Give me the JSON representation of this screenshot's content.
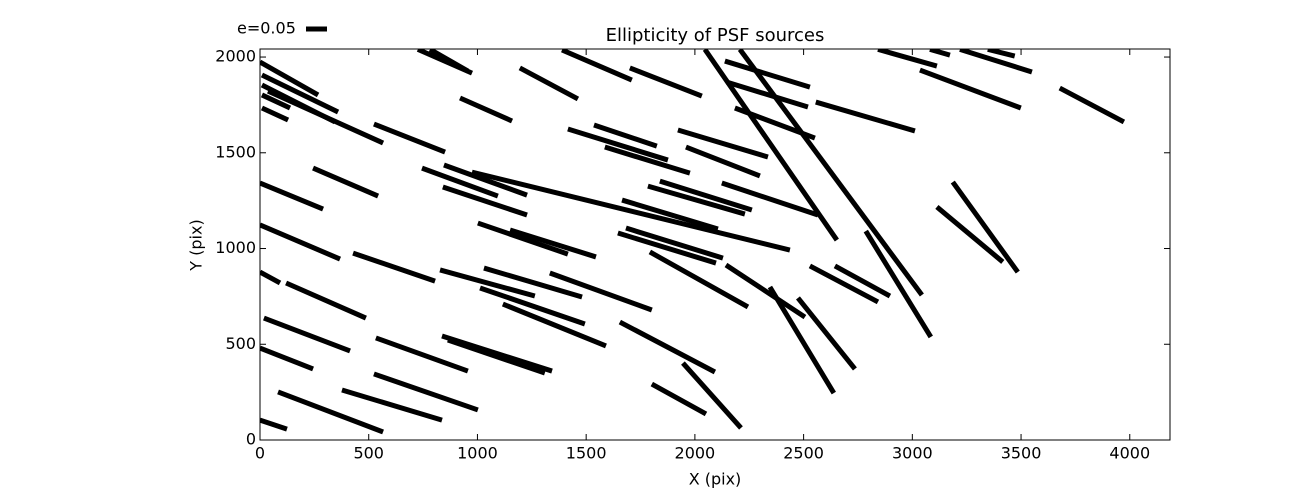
{
  "chart_data": {
    "type": "quiver",
    "title": "Ellipticity of PSF sources",
    "x_label": "X (pix)",
    "y_label": "Y (pix)",
    "legend_label": "e=0.05",
    "color": "#000000",
    "xlim": [
      0,
      4185
    ],
    "ylim": [
      0,
      2042
    ],
    "xticks": [
      0,
      500,
      1000,
      1500,
      2000,
      2500,
      3000,
      3500,
      4000
    ],
    "yticks": [
      0,
      500,
      1000,
      1500,
      2000
    ],
    "segments": [
      [
        0,
        1974,
        267,
        1802
      ],
      [
        9,
        1906,
        359,
        1713
      ],
      [
        9,
        1854,
        345,
        1661
      ],
      [
        9,
        1802,
        138,
        1734
      ],
      [
        9,
        1734,
        129,
        1671
      ],
      [
        0,
        1342,
        290,
        1206
      ],
      [
        0,
        1123,
        368,
        945
      ],
      [
        0,
        877,
        92,
        820
      ],
      [
        120,
        820,
        487,
        637
      ],
      [
        18,
        637,
        414,
        465
      ],
      [
        0,
        480,
        244,
        371
      ],
      [
        83,
        251,
        566,
        42
      ],
      [
        0,
        104,
        124,
        57
      ],
      [
        244,
        1420,
        543,
        1274
      ],
      [
        524,
        1650,
        851,
        1504
      ],
      [
        37,
        1822,
        566,
        1551
      ],
      [
        726,
        2040,
        975,
        1916
      ],
      [
        782,
        2040,
        956,
        1927
      ],
      [
        920,
        1786,
        1159,
        1666
      ],
      [
        1195,
        1943,
        1462,
        1781
      ],
      [
        1389,
        2037,
        1710,
        1880
      ],
      [
        1701,
        1943,
        2032,
        1796
      ],
      [
        1416,
        1624,
        1876,
        1462
      ],
      [
        1536,
        1645,
        1825,
        1535
      ],
      [
        1586,
        1530,
        1977,
        1394
      ],
      [
        1922,
        1619,
        2336,
        1478
      ],
      [
        1959,
        1530,
        2299,
        1379
      ],
      [
        2138,
        1979,
        2529,
        1843
      ],
      [
        2147,
        1869,
        2520,
        1739
      ],
      [
        2184,
        1734,
        2552,
        1577
      ],
      [
        2556,
        1765,
        3012,
        1614
      ],
      [
        3035,
        1932,
        3499,
        1734
      ],
      [
        2842,
        2040,
        3113,
        1953
      ],
      [
        3081,
        2040,
        3173,
        2010
      ],
      [
        3219,
        2040,
        3550,
        1922
      ],
      [
        3347,
        2040,
        3471,
        2005
      ],
      [
        3678,
        1838,
        3973,
        1661
      ],
      [
        2046,
        2040,
        2653,
        1044
      ],
      [
        2207,
        2040,
        3044,
        757
      ],
      [
        846,
        1436,
        1228,
        1279
      ],
      [
        745,
        1420,
        1094,
        1274
      ],
      [
        841,
        1321,
        1228,
        1175
      ],
      [
        975,
        1399,
        2437,
        992
      ],
      [
        1002,
        1133,
        1416,
        971
      ],
      [
        1150,
        1097,
        1545,
        956
      ],
      [
        1665,
        1253,
        2106,
        1102
      ],
      [
        1784,
        1326,
        2230,
        1180
      ],
      [
        1839,
        1352,
        2262,
        1201
      ],
      [
        2124,
        1342,
        2566,
        1175
      ],
      [
        1646,
        1081,
        2097,
        924
      ],
      [
        1683,
        1107,
        2129,
        950
      ],
      [
        428,
        976,
        805,
        830
      ],
      [
        828,
        888,
        1264,
        752
      ],
      [
        1030,
        898,
        1481,
        747
      ],
      [
        1333,
        872,
        1802,
        679
      ],
      [
        1012,
        794,
        1494,
        606
      ],
      [
        1117,
        710,
        1591,
        491
      ],
      [
        533,
        533,
        956,
        360
      ],
      [
        837,
        543,
        1343,
        360
      ],
      [
        864,
        522,
        1310,
        350
      ],
      [
        524,
        345,
        1002,
        157
      ],
      [
        377,
        261,
        837,
        104
      ],
      [
        1793,
        982,
        2244,
        695
      ],
      [
        2143,
        914,
        2506,
        642
      ],
      [
        2345,
        799,
        2639,
        245
      ],
      [
        2474,
        742,
        2736,
        371
      ],
      [
        2529,
        909,
        2842,
        721
      ],
      [
        2644,
        909,
        2897,
        752
      ],
      [
        2786,
        1091,
        3085,
        538
      ],
      [
        3113,
        1217,
        3416,
        930
      ],
      [
        3186,
        1347,
        3485,
        877
      ],
      [
        1655,
        616,
        2092,
        355
      ],
      [
        1802,
        292,
        2051,
        136
      ],
      [
        1945,
        402,
        2212,
        63
      ]
    ]
  }
}
